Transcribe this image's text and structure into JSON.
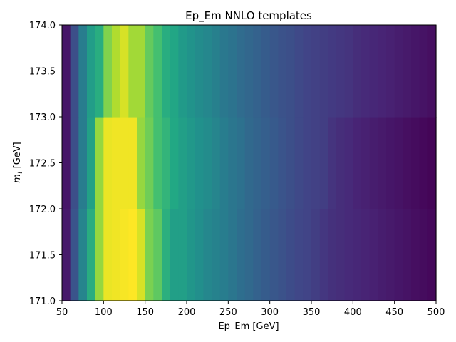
{
  "chart_data": {
    "type": "heatmap",
    "title": "Ep_Em NNLO templates",
    "xlabel": "Ep_Em [GeV]",
    "ylabel_main": "m",
    "ylabel_sub": "t",
    "ylabel_unit": " [GeV]",
    "xlim": [
      50,
      500
    ],
    "ylim": [
      171.0,
      174.0
    ],
    "xticks": [
      50,
      100,
      150,
      200,
      250,
      300,
      350,
      400,
      450,
      500
    ],
    "yticks": [
      171.0,
      171.5,
      172.0,
      172.5,
      173.0,
      173.5,
      174.0
    ],
    "colormap": "viridis",
    "x_edges": [
      50,
      60,
      70,
      80,
      90,
      100,
      110,
      120,
      130,
      140,
      150,
      160,
      170,
      180,
      190,
      200,
      210,
      220,
      230,
      240,
      250,
      260,
      270,
      280,
      290,
      300,
      310,
      320,
      330,
      340,
      350,
      360,
      370,
      380,
      390,
      400,
      410,
      420,
      430,
      440,
      450,
      460,
      470,
      480,
      490,
      500
    ],
    "y_edges": [
      171.0,
      172.0,
      173.0,
      174.0
    ],
    "z": [
      [
        0.07,
        0.26,
        0.45,
        0.62,
        0.84,
        0.97,
        0.98,
        0.99,
        1.0,
        0.94,
        0.8,
        0.75,
        0.63,
        0.56,
        0.56,
        0.52,
        0.49,
        0.46,
        0.44,
        0.42,
        0.39,
        0.36,
        0.34,
        0.31,
        0.29,
        0.27,
        0.25,
        0.23,
        0.21,
        0.2,
        0.18,
        0.16,
        0.14,
        0.13,
        0.12,
        0.11,
        0.1,
        0.09,
        0.08,
        0.07,
        0.06,
        0.05,
        0.04,
        0.03,
        0.02
      ],
      [
        0.06,
        0.24,
        0.42,
        0.57,
        0.84,
        0.97,
        0.98,
        0.98,
        0.98,
        0.84,
        0.78,
        0.7,
        0.65,
        0.6,
        0.56,
        0.53,
        0.5,
        0.48,
        0.45,
        0.42,
        0.39,
        0.37,
        0.34,
        0.32,
        0.3,
        0.28,
        0.26,
        0.24,
        0.22,
        0.2,
        0.19,
        0.18,
        0.15,
        0.13,
        0.12,
        0.1,
        0.09,
        0.08,
        0.07,
        0.06,
        0.05,
        0.04,
        0.03,
        0.02,
        0.01
      ],
      [
        0.06,
        0.24,
        0.42,
        0.55,
        0.62,
        0.81,
        0.88,
        0.94,
        0.86,
        0.86,
        0.76,
        0.7,
        0.62,
        0.59,
        0.54,
        0.51,
        0.48,
        0.46,
        0.43,
        0.4,
        0.38,
        0.35,
        0.33,
        0.31,
        0.29,
        0.27,
        0.25,
        0.24,
        0.22,
        0.2,
        0.19,
        0.18,
        0.17,
        0.16,
        0.15,
        0.13,
        0.12,
        0.11,
        0.1,
        0.09,
        0.08,
        0.07,
        0.06,
        0.05,
        0.04
      ]
    ]
  }
}
